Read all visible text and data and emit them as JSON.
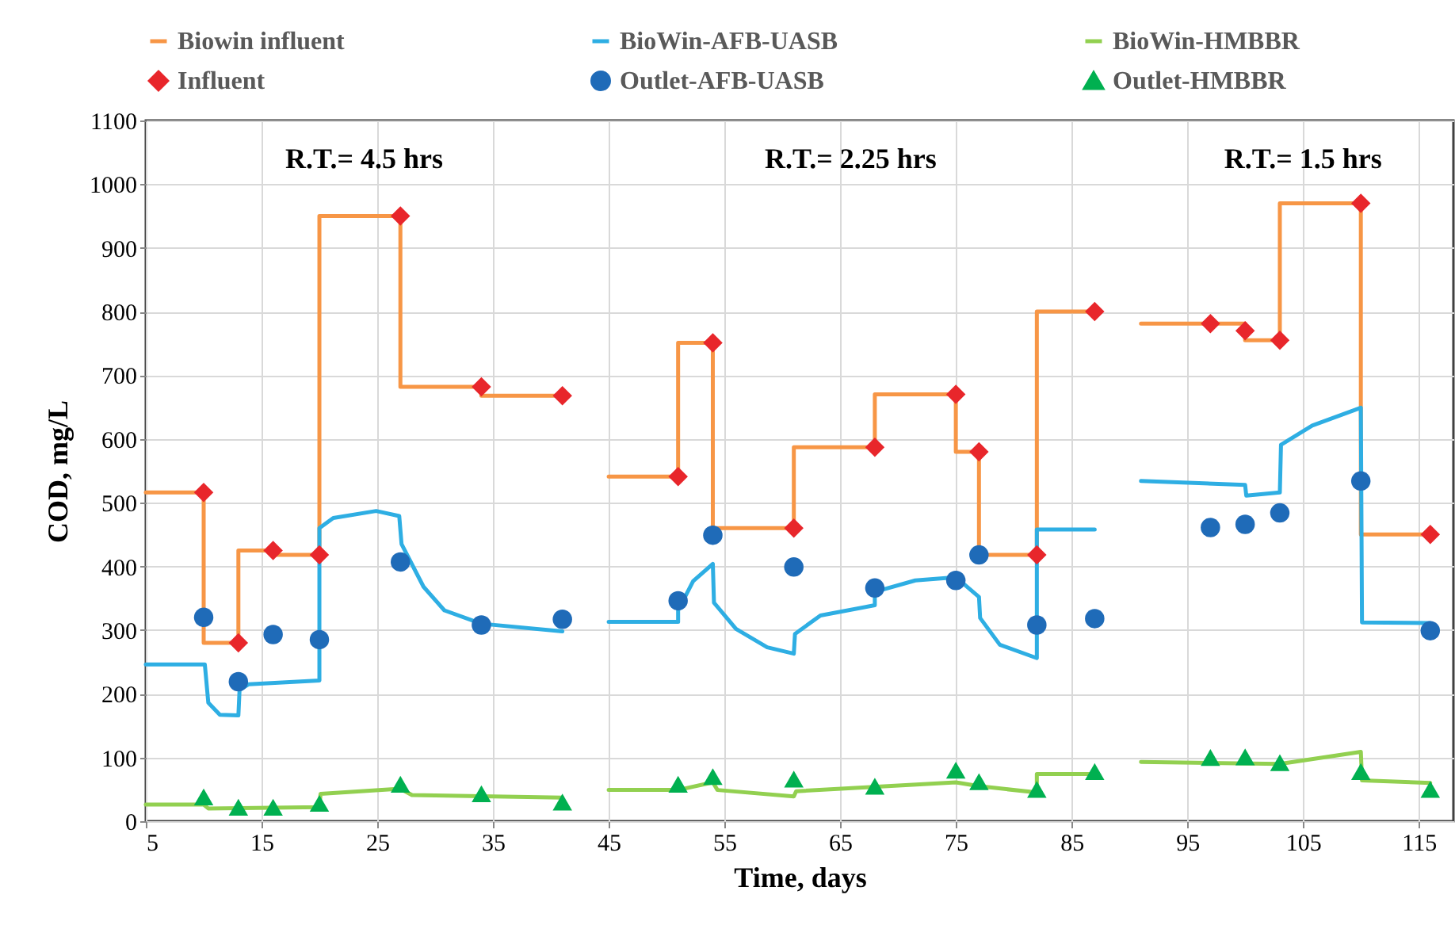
{
  "chart_data": {
    "type": "line",
    "xlabel": "Time, days",
    "ylabel": "COD, mg/L",
    "xlim": [
      5,
      118
    ],
    "xticks": [
      5,
      15,
      25,
      35,
      45,
      55,
      65,
      75,
      85,
      95,
      105,
      115
    ],
    "ylim": [
      0,
      1100
    ],
    "yticks": [
      0,
      100,
      200,
      300,
      400,
      500,
      600,
      700,
      800,
      900,
      1000,
      1100
    ],
    "grid": true,
    "legend": "top",
    "annotations": [
      "R.T.= 4.5 hrs",
      "R.T.= 2.25 hrs",
      "R.T.= 1.5 hrs"
    ],
    "series": [
      {
        "name": "Biowin influent",
        "type": "step",
        "color": "#f79646",
        "x": [
          5,
          10,
          13,
          16,
          20,
          27,
          34,
          41,
          43,
          45,
          51,
          54,
          61,
          68,
          75,
          77,
          82,
          87,
          89,
          91,
          100,
          103,
          110,
          116
        ],
        "values": [
          516,
          280,
          425,
          418,
          950,
          682,
          668,
          668,
          null,
          541,
          751,
          460,
          587,
          670,
          580,
          418,
          800,
          800,
          null,
          781,
          755,
          970,
          450,
          450
        ]
      },
      {
        "name": "BioWin-AFB-UASB",
        "color": "#2eaee3",
        "x": [
          5,
          10.1,
          10.4,
          11.4,
          13,
          13.1,
          13.9,
          20,
          20,
          21.2,
          24.9,
          26.9,
          27.1,
          29,
          30.8,
          34,
          41,
          43,
          45,
          51,
          51,
          52.3,
          54,
          54.1,
          56,
          58.7,
          61,
          61.1,
          63.3,
          68,
          68,
          71.5,
          75,
          77,
          77.1,
          78.8,
          82,
          82,
          87,
          89,
          91,
          100,
          100.1,
          103,
          103.1,
          105.8,
          110,
          110.1,
          116
        ],
        "values": [
          246,
          246,
          186,
          167,
          166,
          206,
          215,
          221,
          460,
          476,
          487,
          479,
          435,
          368,
          331,
          310,
          298,
          null,
          313,
          313,
          331,
          377,
          404,
          343,
          302,
          273,
          263,
          294,
          323,
          339,
          360,
          378,
          383,
          352,
          319,
          277,
          256,
          458,
          458,
          null,
          534,
          528,
          511,
          516,
          591,
          621,
          649,
          312,
          311
        ]
      },
      {
        "name": "BioWin-HMBBR",
        "color": "#92d050",
        "x": [
          5,
          10,
          10.4,
          20,
          20.1,
          27,
          28,
          41,
          43,
          45,
          51,
          54,
          54.4,
          61,
          61.2,
          75,
          77,
          82,
          82,
          87,
          89,
          91,
          103,
          110,
          110.1,
          116
        ],
        "values": [
          26,
          26,
          20,
          22,
          43,
          51,
          41,
          37,
          null,
          49,
          49,
          61,
          49,
          39,
          47,
          61,
          55,
          45,
          74,
          74,
          null,
          93,
          90,
          109,
          64,
          60
        ]
      },
      {
        "name": "Influent",
        "type": "scatter",
        "marker": "diamond",
        "color": "#e8262b",
        "x": [
          10,
          13,
          16,
          20,
          27,
          34,
          41,
          51,
          54,
          61,
          68,
          75,
          77,
          82,
          87,
          97,
          100,
          103,
          110,
          116
        ],
        "values": [
          516,
          280,
          425,
          418,
          950,
          682,
          668,
          541,
          751,
          460,
          587,
          670,
          580,
          418,
          800,
          781,
          770,
          755,
          970,
          450
        ]
      },
      {
        "name": "Outlet-AFB-UASB",
        "type": "scatter",
        "marker": "circle",
        "color": "#1f6bb8",
        "x": [
          10,
          13,
          16,
          20,
          27,
          34,
          41,
          51,
          54,
          61,
          68,
          75,
          77,
          82,
          87,
          97,
          100,
          103,
          110,
          116
        ],
        "values": [
          320,
          219,
          293,
          285,
          407,
          308,
          317,
          346,
          449,
          399,
          366,
          378,
          418,
          308,
          318,
          461,
          466,
          484,
          534,
          299
        ]
      },
      {
        "name": "Outlet-HMBBR",
        "type": "scatter",
        "marker": "triangle",
        "color": "#00b050",
        "x": [
          10,
          13,
          16,
          20,
          27,
          34,
          41,
          51,
          54,
          61,
          68,
          75,
          77,
          82,
          87,
          97,
          100,
          103,
          110,
          116
        ],
        "values": [
          38,
          22,
          22,
          28,
          58,
          43,
          30,
          58,
          70,
          66,
          55,
          80,
          62,
          50,
          78,
          100,
          101,
          92,
          78,
          50
        ]
      }
    ]
  }
}
